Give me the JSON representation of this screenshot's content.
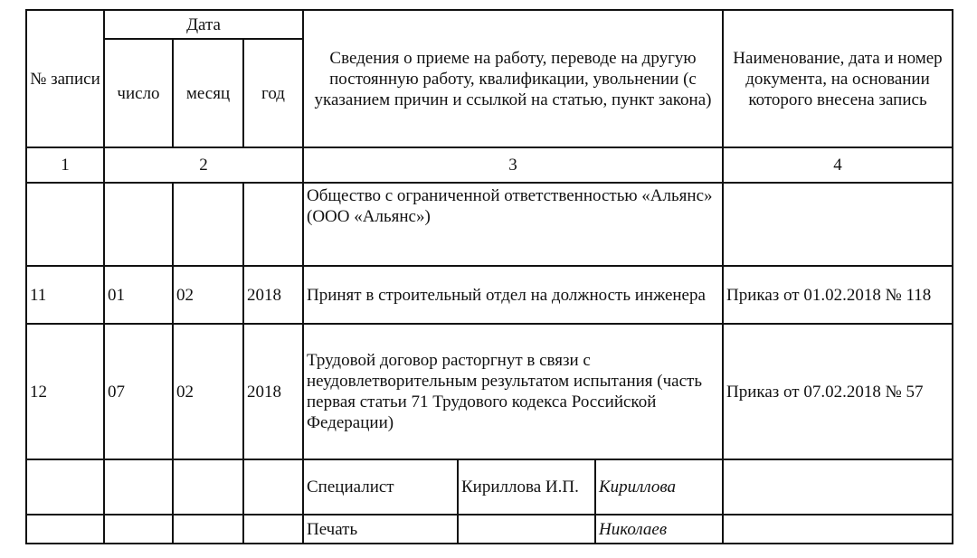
{
  "header": {
    "record_no": "№ записи",
    "date": "Дата",
    "day": "число",
    "month": "месяц",
    "year": "год",
    "info": "Сведения о приеме на работу, переводе на другую постоянную работу, квалификации, увольнении (с указанием причин и ссылкой на статью, пункт закона)",
    "document": "Наименование, дата и номер документа, на основании которого внесена запись"
  },
  "column_numbers": [
    "1",
    "2",
    "3",
    "4"
  ],
  "rows": [
    {
      "no": "",
      "day": "",
      "month": "",
      "year": "",
      "info": "Общество с ограниченной ответственностью «Альянс» (ООО «Альянс»)",
      "document": ""
    },
    {
      "no": "11",
      "day": "01",
      "month": "02",
      "year": "2018",
      "info": "Принят в строительный отдел на должность инженера",
      "document": "Приказ от 01.02.2018 № 118"
    },
    {
      "no": "12",
      "day": "07",
      "month": "02",
      "year": "2018",
      "info": "Трудовой договор расторгнут в связи с неудовлетворительным результатом испытания (часть первая статьи 71 Трудового кодекса Российской Федерации)",
      "document": "Приказ от 07.02.2018 № 57"
    }
  ],
  "signature": {
    "position": "Специалист",
    "name": "Кириллова И.П.",
    "signature": "Кириллова",
    "stamp_label": "Печать",
    "stamp_signature": "Николаев"
  }
}
